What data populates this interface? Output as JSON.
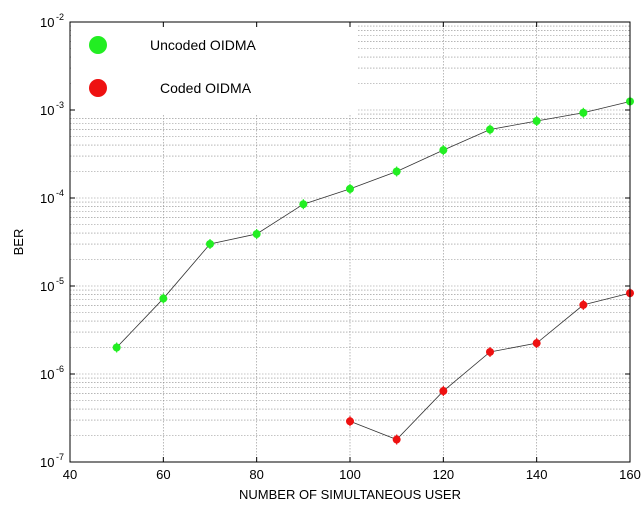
{
  "chart_data": {
    "type": "line",
    "xlabel": "NUMBER OF SIMULTANEOUS USER",
    "ylabel": "BER",
    "xlim": [
      40,
      160
    ],
    "ylim": [
      1e-07,
      0.01
    ],
    "yscale": "log",
    "grid": true,
    "legend_position": "top-left",
    "x_ticks": [
      40,
      60,
      80,
      100,
      120,
      140,
      160
    ],
    "y_ticks": [
      {
        "base": "10",
        "exp": "-7",
        "value": 1e-07
      },
      {
        "base": "10",
        "exp": "-6",
        "value": 1e-06
      },
      {
        "base": "10",
        "exp": "-5",
        "value": 1e-05
      },
      {
        "base": "10",
        "exp": "-4",
        "value": 0.0001
      },
      {
        "base": "10",
        "exp": "-3",
        "value": 0.001
      },
      {
        "base": "10",
        "exp": "-2",
        "value": 0.01
      }
    ],
    "series": [
      {
        "name": "Uncoded OIDMA",
        "color": "#22ee22",
        "x": [
          50,
          60,
          70,
          80,
          90,
          100,
          110,
          120,
          130,
          140,
          150,
          160
        ],
        "y": [
          2e-06,
          7.2e-06,
          3e-05,
          3.9e-05,
          8.5e-05,
          0.000127,
          0.0002,
          0.00035,
          0.0006,
          0.00075,
          0.00093,
          0.00125
        ]
      },
      {
        "name": "Coded OIDMA",
        "color": "#ee1111",
        "x": [
          100,
          110,
          120,
          130,
          140,
          150,
          160
        ],
        "y": [
          2.9e-07,
          1.8e-07,
          6.4e-07,
          1.78e-06,
          2.24e-06,
          6.1e-06,
          8.3e-06
        ]
      }
    ]
  }
}
